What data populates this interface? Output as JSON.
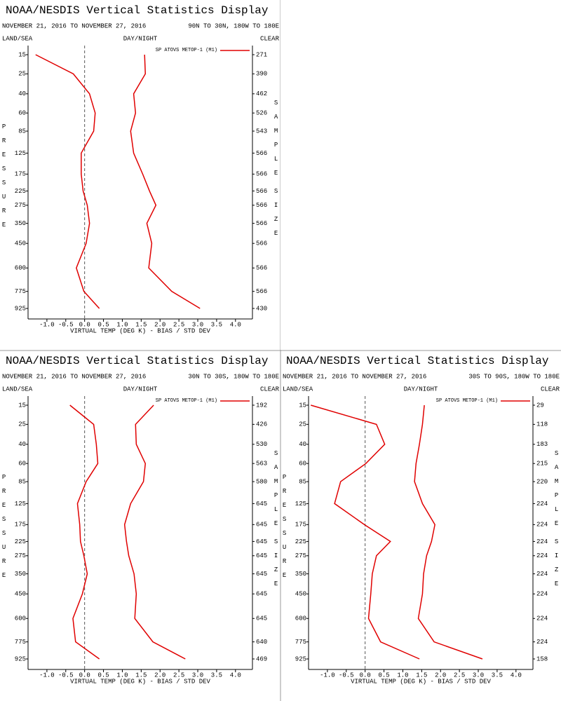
{
  "chart_data": [
    {
      "type": "line",
      "title": "NOAA/NESDIS Vertical Statistics Display",
      "date_range": "NOVEMBER 21, 2016 TO NOVEMBER 27, 2016",
      "region": "90N TO 30N, 180W TO 180E",
      "left_header": "LAND/SEA",
      "center_header": "DAY/NIGHT",
      "right_header": "CLEAR",
      "y_label": "PRESSURE",
      "y2_label": [
        "SAMPLE",
        "SIZE"
      ],
      "x_label": "VIRTUAL TEMP (DEG K) - BIAS / STD DEV",
      "categories": [
        15,
        25,
        40,
        60,
        85,
        125,
        175,
        225,
        275,
        350,
        450,
        600,
        775,
        925
      ],
      "sample_size": [
        271,
        390,
        462,
        526,
        543,
        566,
        566,
        566,
        566,
        566,
        566,
        566,
        566,
        430
      ],
      "series": [
        {
          "name": "SP ATOVS METOP-1 (M1)",
          "color": "#e00000",
          "values": [
            -1.3,
            -0.3,
            0.13,
            0.28,
            0.24,
            -0.09,
            -0.09,
            -0.04,
            0.07,
            0.13,
            0.04,
            -0.22,
            -0.02,
            0.39
          ],
          "std_dev": [
            1.59,
            1.61,
            1.3,
            1.35,
            1.22,
            1.3,
            1.54,
            1.72,
            1.89,
            1.65,
            1.78,
            1.7,
            2.31,
            3.06
          ]
        }
      ],
      "xlim": [
        -1.5,
        4.45
      ],
      "xticks": [
        {
          "value": -1,
          "label": "-1.0"
        },
        {
          "value": -0.5,
          "label": "-0.5"
        },
        {
          "value": 0,
          "label": "0.0"
        },
        {
          "value": 0.5,
          "label": "0.5"
        },
        {
          "value": 1,
          "label": "1.0"
        },
        {
          "value": 1.5,
          "label": "1.5"
        },
        {
          "value": 2,
          "label": "2.0"
        },
        {
          "value": 2.5,
          "label": "2.5"
        },
        {
          "value": 3,
          "label": "3.0"
        },
        {
          "value": 3.5,
          "label": "3.5"
        },
        {
          "value": 4,
          "label": "4.0"
        }
      ]
    },
    {
      "type": "line",
      "title": "NOAA/NESDIS Vertical Statistics Display",
      "date_range": "NOVEMBER 21, 2016 TO NOVEMBER 27, 2016",
      "region": "30N TO 30S, 180W TO 180E",
      "left_header": "LAND/SEA",
      "center_header": "DAY/NIGHT",
      "right_header": "CLEAR",
      "y_label": "PRESSURE",
      "y2_label": [
        "SAMPLE",
        "SIZE"
      ],
      "x_label": "VIRTUAL TEMP (DEG K) - BIAS / STD DEV",
      "categories": [
        15,
        25,
        40,
        60,
        85,
        125,
        175,
        225,
        275,
        350,
        450,
        600,
        775,
        925
      ],
      "sample_size": [
        192,
        426,
        530,
        563,
        580,
        645,
        645,
        645,
        645,
        645,
        645,
        645,
        640,
        469
      ],
      "series": [
        {
          "name": "SP ATOVS METOP-1 (M1)",
          "color": "#e00000",
          "values": [
            -0.39,
            0.24,
            0.31,
            0.35,
            0.04,
            -0.19,
            -0.13,
            -0.11,
            -0.02,
            0.07,
            -0.06,
            -0.31,
            -0.24,
            0.39
          ],
          "std_dev": [
            1.83,
            1.35,
            1.37,
            1.61,
            1.56,
            1.22,
            1.06,
            1.11,
            1.17,
            1.31,
            1.37,
            1.33,
            1.81,
            2.67
          ]
        }
      ],
      "xlim": [
        -1.5,
        4.45
      ],
      "xticks": [
        {
          "value": -1,
          "label": "-1.0"
        },
        {
          "value": -0.5,
          "label": "-0.5"
        },
        {
          "value": 0,
          "label": "0.0"
        },
        {
          "value": 0.5,
          "label": "0.5"
        },
        {
          "value": 1,
          "label": "1.0"
        },
        {
          "value": 1.5,
          "label": "1.5"
        },
        {
          "value": 2,
          "label": "2.0"
        },
        {
          "value": 2.5,
          "label": "2.5"
        },
        {
          "value": 3,
          "label": "3.0"
        },
        {
          "value": 3.5,
          "label": "3.5"
        },
        {
          "value": 4,
          "label": "4.0"
        }
      ]
    },
    {
      "type": "line",
      "title": "NOAA/NESDIS Vertical Statistics Display",
      "date_range": "NOVEMBER 21, 2016 TO NOVEMBER 27, 2016",
      "region": "30S TO 90S, 180W TO 180E",
      "left_header": "LAND/SEA",
      "center_header": "DAY/NIGHT",
      "right_header": "CLEAR",
      "y_label": "PRESSURE",
      "y2_label": [
        "SAMPLE",
        "SIZE"
      ],
      "x_label": "VIRTUAL TEMP (DEG K) - BIAS / STD DEV",
      "categories": [
        15,
        25,
        40,
        60,
        85,
        125,
        175,
        225,
        275,
        350,
        450,
        600,
        775,
        925
      ],
      "sample_size": [
        29,
        118,
        183,
        215,
        220,
        224,
        224,
        224,
        224,
        224,
        224,
        224,
        224,
        158
      ],
      "series": [
        {
          "name": "SP ATOVS METOP-1 (M1)",
          "color": "#e00000",
          "values": [
            -1.44,
            0.3,
            0.52,
            0.02,
            -0.65,
            -0.81,
            -0.02,
            0.67,
            0.3,
            0.19,
            0.15,
            0.09,
            0.41,
            1.44
          ],
          "std_dev": [
            1.57,
            1.52,
            1.44,
            1.35,
            1.31,
            1.52,
            1.85,
            1.76,
            1.63,
            1.55,
            1.52,
            1.41,
            1.83,
            3.11
          ]
        }
      ],
      "xlim": [
        -1.5,
        4.45
      ],
      "xticks": [
        {
          "value": -1,
          "label": "-1.0"
        },
        {
          "value": -0.5,
          "label": "-0.5"
        },
        {
          "value": 0,
          "label": "0.0"
        },
        {
          "value": 0.5,
          "label": "0.5"
        },
        {
          "value": 1,
          "label": "1.0"
        },
        {
          "value": 1.5,
          "label": "1.5"
        },
        {
          "value": 2,
          "label": "2.0"
        },
        {
          "value": 2.5,
          "label": "2.5"
        },
        {
          "value": 3,
          "label": "3.0"
        },
        {
          "value": 3.5,
          "label": "3.5"
        },
        {
          "value": 4,
          "label": "4.0"
        }
      ]
    }
  ]
}
